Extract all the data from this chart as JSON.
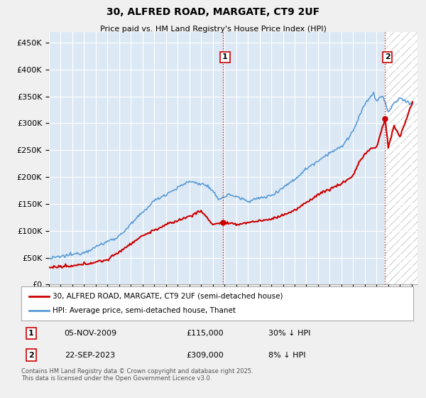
{
  "title": "30, ALFRED ROAD, MARGATE, CT9 2UF",
  "subtitle": "Price paid vs. HM Land Registry's House Price Index (HPI)",
  "ylim": [
    0,
    470000
  ],
  "yticks": [
    0,
    50000,
    100000,
    150000,
    200000,
    250000,
    300000,
    350000,
    400000,
    450000
  ],
  "ytick_labels": [
    "£0",
    "£50K",
    "£100K",
    "£150K",
    "£200K",
    "£250K",
    "£300K",
    "£350K",
    "£400K",
    "£450K"
  ],
  "xlim_start": 1995.0,
  "xlim_end": 2026.5,
  "hpi_color": "#5b9bd5",
  "price_color": "#cc0000",
  "sale1_x": 2009.85,
  "sale1_y": 115000,
  "sale2_x": 2023.73,
  "sale2_y": 309000,
  "legend_line1": "30, ALFRED ROAD, MARGATE, CT9 2UF (semi-detached house)",
  "legend_line2": "HPI: Average price, semi-detached house, Thanet",
  "footnote": "Contains HM Land Registry data © Crown copyright and database right 2025.\nThis data is licensed under the Open Government Licence v3.0.",
  "bg_color": "#dce9f5",
  "grid_color": "#ffffff",
  "fig_bg": "#f0f0f0"
}
